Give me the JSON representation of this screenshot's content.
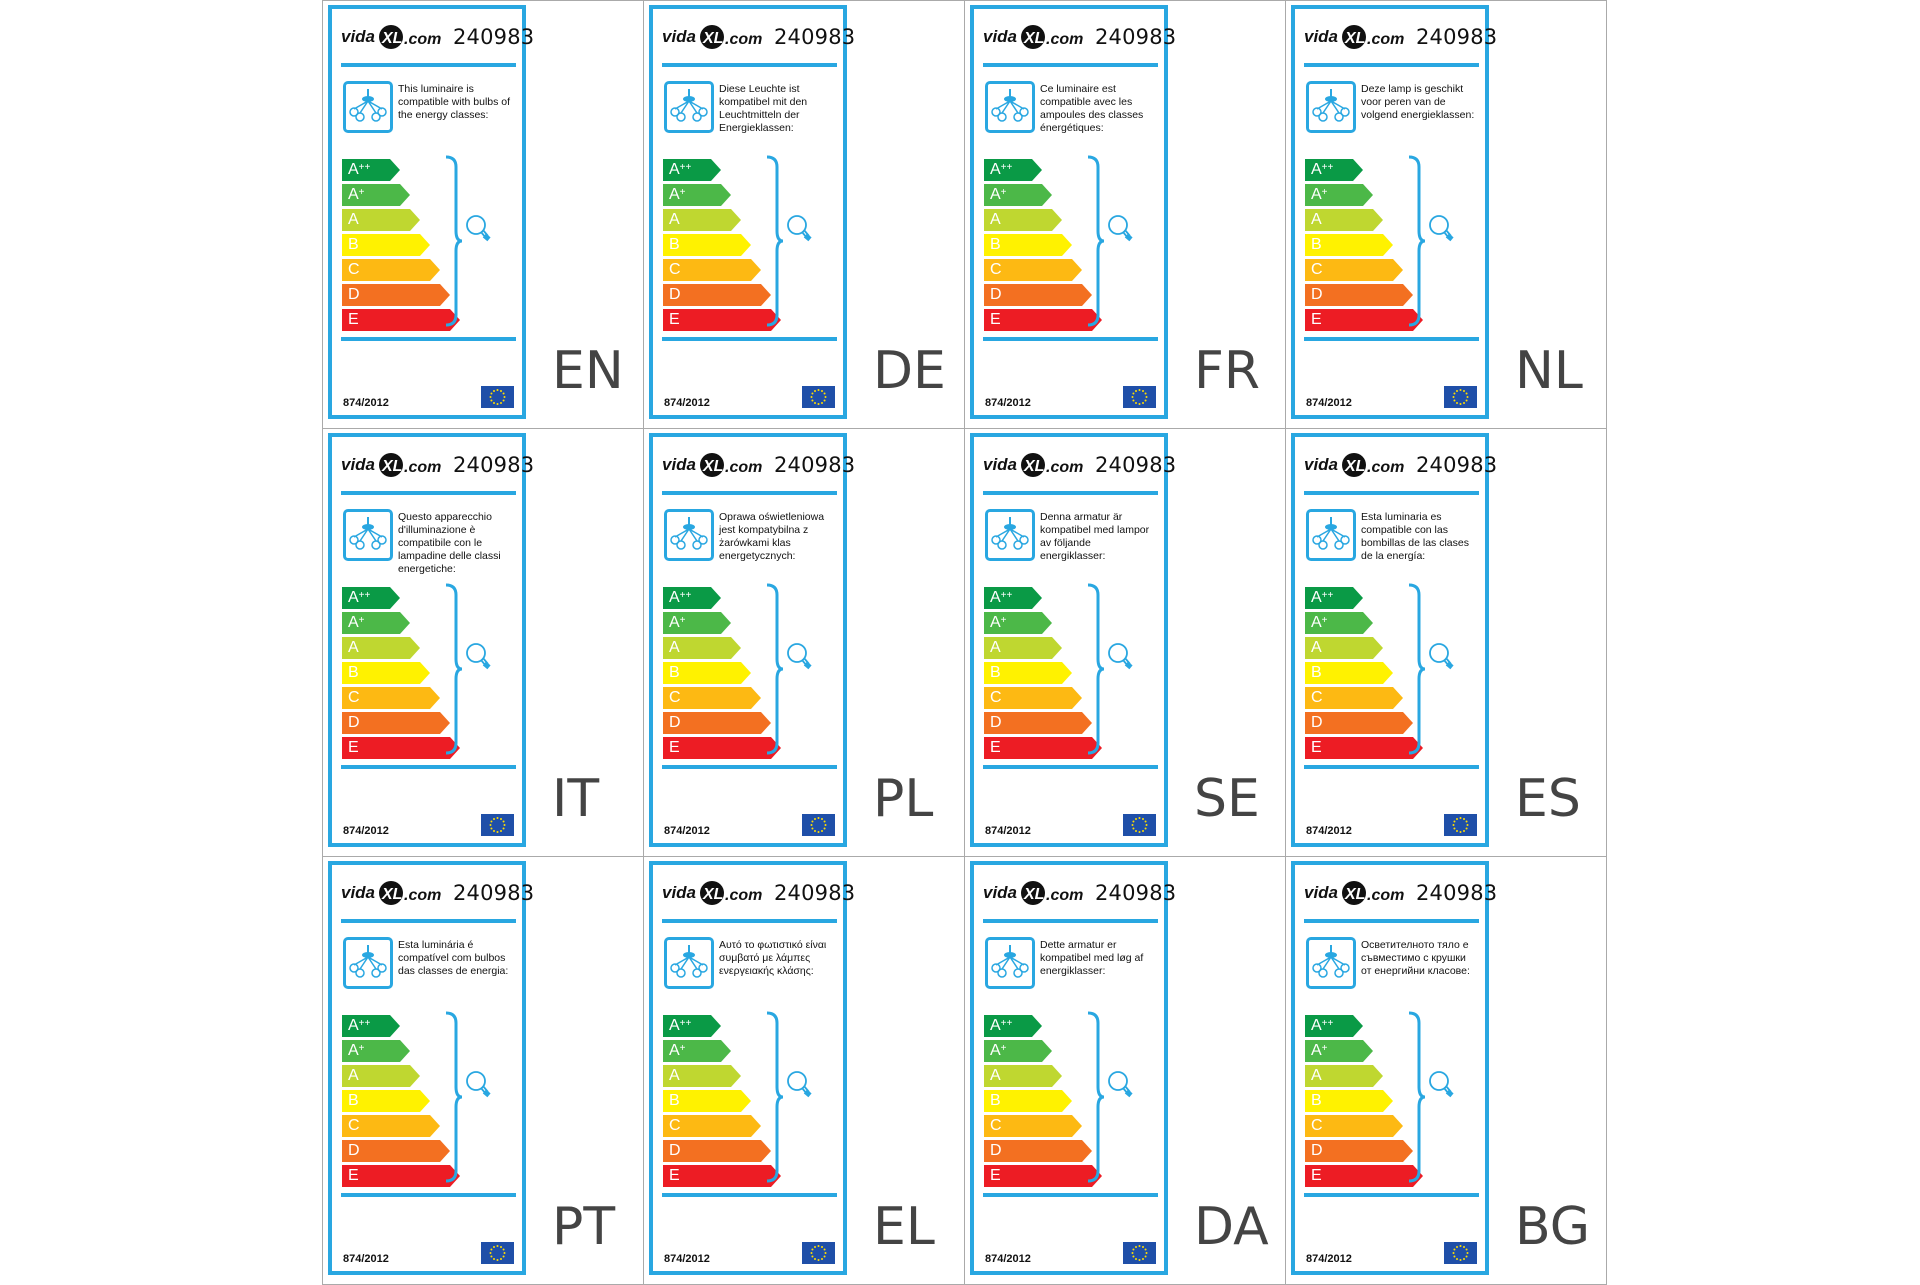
{
  "product_code": "240983",
  "logo_text": "vidaXL.com",
  "regulation": "874/2012",
  "energy_classes": [
    {
      "base": "A",
      "sup": "++",
      "color": "#0a9a46",
      "width": 60
    },
    {
      "base": "A",
      "sup": "+",
      "color": "#4cb848",
      "width": 70
    },
    {
      "base": "A",
      "sup": "",
      "color": "#bfd730",
      "width": 80
    },
    {
      "base": "B",
      "sup": "",
      "color": "#fff200",
      "width": 90
    },
    {
      "base": "C",
      "sup": "",
      "color": "#fdb913",
      "width": 100
    },
    {
      "base": "D",
      "sup": "",
      "color": "#f37021",
      "width": 110
    },
    {
      "base": "E",
      "sup": "",
      "color": "#ed1c24",
      "width": 120
    }
  ],
  "colors": {
    "frame": "#29a7e1",
    "eu_flag": "#1f4fa8",
    "eu_stars": "#ffdd00"
  },
  "labels": [
    {
      "lang": "EN",
      "text": "This luminaire is compatible with bulbs of the energy classes:"
    },
    {
      "lang": "DE",
      "text": "Diese Leuchte ist kompatibel mit den Leuchtmitteln der Energieklassen:"
    },
    {
      "lang": "FR",
      "text": "Ce luminaire est compatible avec les ampoules des classes énergétiques:"
    },
    {
      "lang": "NL",
      "text": "Deze lamp is geschikt voor peren van de volgend energieklassen:"
    },
    {
      "lang": "IT",
      "text": "Questo apparecchio d'illuminazione è compatibile con le lampadine delle classi energetiche:"
    },
    {
      "lang": "PL",
      "text": "Oprawa oświetleniowa jest kompatybilna z żarówkami klas energetycznych:"
    },
    {
      "lang": "SE",
      "text": "Denna armatur är kompatibel med lampor av följande energiklasser:"
    },
    {
      "lang": "ES",
      "text": "Esta luminaria es compatible con las bombillas de las clases de la energía:"
    },
    {
      "lang": "PT",
      "text": "Esta luminária é compatível com bulbos das classes de energia:"
    },
    {
      "lang": "EL",
      "text": "Αυτό το φωτιστικό είναι συμβατό με λάμπες ενεργειακής κλάσης:"
    },
    {
      "lang": "DA",
      "text": "Dette armatur er kompatibel med løg af energiklasser:"
    },
    {
      "lang": "BG",
      "text": "Осветителното тяло е съвместимо с крушки от енергийни класове:"
    }
  ]
}
